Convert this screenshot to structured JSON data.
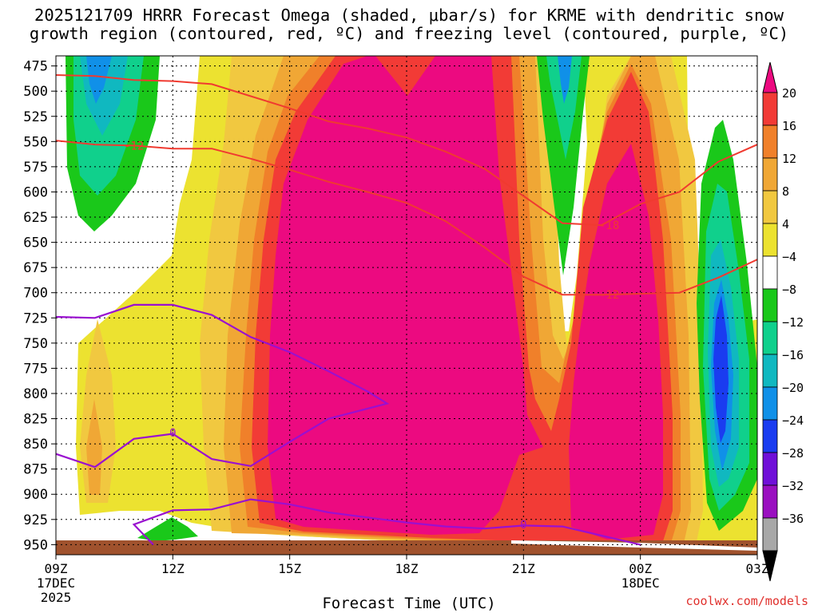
{
  "chart_data": {
    "type": "time-height-contour",
    "title_line1": "2025121709 HRRR Forecast Omega (shaded, μbar/s) for KRME with dendritic snow",
    "title_line2": "growth region (contoured, red, ºC) and freezing level (contoured, purple, ºC)",
    "xlabel": "Forecast Time (UTC)",
    "x_ticks": [
      {
        "hour": 0,
        "label": "09Z",
        "sub": "17DEC",
        "sub2": "2025"
      },
      {
        "hour": 3,
        "label": "12Z",
        "sub": "",
        "sub2": ""
      },
      {
        "hour": 6,
        "label": "15Z",
        "sub": "",
        "sub2": ""
      },
      {
        "hour": 9,
        "label": "18Z",
        "sub": "",
        "sub2": ""
      },
      {
        "hour": 12,
        "label": "21Z",
        "sub": "",
        "sub2": ""
      },
      {
        "hour": 15,
        "label": "00Z",
        "sub": "18DEC",
        "sub2": ""
      },
      {
        "hour": 18,
        "label": "03Z",
        "sub": "",
        "sub2": ""
      }
    ],
    "x_range_hours": [
      0,
      18
    ],
    "y_levels_hpa": [
      475,
      500,
      525,
      550,
      575,
      600,
      625,
      650,
      675,
      700,
      725,
      750,
      775,
      800,
      825,
      850,
      875,
      900,
      925,
      950
    ],
    "y_range_hpa": [
      465,
      960
    ],
    "colorbar": {
      "boundaries": [
        20,
        16,
        12,
        8,
        4,
        -4,
        -8,
        -12,
        -16,
        -20,
        -24,
        -28,
        -32,
        -36
      ],
      "labels": [
        "20",
        "16",
        "12",
        "8",
        "4",
        "−4",
        "−8",
        "−12",
        "−16",
        "−20",
        "−24",
        "−28",
        "−32",
        "−36"
      ],
      "colors": [
        "#ec0a80",
        "#f23b36",
        "#f0802a",
        "#f0a735",
        "#f1c840",
        "#ece230",
        "#ffffff",
        "#1ac81a",
        "#10d08c",
        "#10b8c0",
        "#1090e8",
        "#1a3cf0",
        "#7010d8",
        "#9a10c0",
        "#a8a8a8",
        "#000000"
      ]
    },
    "red_contours": [
      {
        "label": "-12",
        "points": [
          [
            0,
            549
          ],
          [
            1,
            553
          ],
          [
            2,
            554
          ],
          [
            3,
            557
          ],
          [
            4,
            557
          ],
          [
            5,
            567
          ],
          [
            6,
            578
          ],
          [
            7,
            590
          ],
          [
            8,
            600
          ],
          [
            9,
            611
          ],
          [
            10,
            629
          ],
          [
            11,
            655
          ],
          [
            12,
            684
          ],
          [
            13,
            702
          ],
          [
            14,
            702
          ],
          [
            15,
            701
          ],
          [
            16,
            700
          ],
          [
            17,
            685
          ],
          [
            18,
            667
          ]
        ]
      },
      {
        "label": "-18",
        "points": [
          [
            0,
            484
          ],
          [
            1,
            485
          ],
          [
            2,
            489
          ],
          [
            3,
            490
          ],
          [
            4,
            493
          ],
          [
            5,
            505
          ],
          [
            6,
            517
          ],
          [
            7,
            530
          ],
          [
            8,
            537
          ],
          [
            9,
            546
          ],
          [
            10,
            560
          ],
          [
            11,
            577
          ],
          [
            12,
            604
          ],
          [
            13,
            631
          ],
          [
            14,
            633
          ],
          [
            15,
            612
          ],
          [
            16,
            600
          ],
          [
            17,
            570
          ],
          [
            18,
            553
          ]
        ]
      }
    ],
    "contour_labels": [
      {
        "text": "-12",
        "hour": 2.0,
        "hpa": 554
      },
      {
        "text": "-18",
        "hour": 14.2,
        "hpa": 633
      },
      {
        "text": "-12",
        "hour": 14.2,
        "hpa": 702
      },
      {
        "text": "0",
        "hour": 3.0,
        "hpa": 839
      },
      {
        "text": "0",
        "hour": 12.0,
        "hpa": 930
      }
    ],
    "purple_contours": [
      {
        "label": "0",
        "points": [
          [
            0,
            724
          ],
          [
            1,
            725
          ],
          [
            2,
            712
          ],
          [
            3,
            712
          ],
          [
            4,
            722
          ],
          [
            5,
            744
          ],
          [
            6,
            759
          ],
          [
            7,
            778
          ],
          [
            8,
            798
          ],
          [
            8.5,
            810
          ],
          [
            7,
            825
          ],
          [
            6,
            848
          ],
          [
            5,
            872
          ],
          [
            4,
            865
          ],
          [
            3,
            840
          ],
          [
            2,
            845
          ],
          [
            1,
            873
          ],
          [
            0,
            860
          ]
        ]
      },
      {
        "label": "0",
        "points": [
          [
            2.5,
            950
          ],
          [
            2,
            930
          ],
          [
            3,
            916
          ],
          [
            4,
            915
          ],
          [
            5,
            905
          ],
          [
            6,
            910
          ],
          [
            7,
            918
          ],
          [
            8,
            923
          ],
          [
            9,
            928
          ],
          [
            10,
            932
          ],
          [
            11,
            934
          ],
          [
            12,
            931
          ],
          [
            13,
            932
          ],
          [
            14,
            941
          ],
          [
            15,
            950
          ]
        ]
      }
    ]
  },
  "credit": "coolwx.com/models"
}
